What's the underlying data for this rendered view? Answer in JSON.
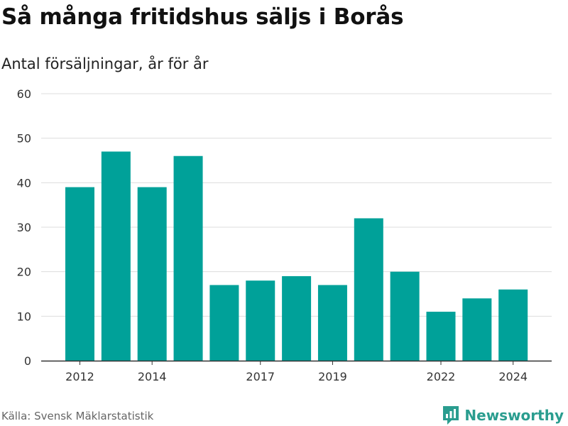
{
  "title": "Så många fritidshus säljs i Borås",
  "subtitle": "Antal försäljningar, år för år",
  "source": "Källa: Svensk Mäklarstatistik",
  "brand": "Newsworthy",
  "colors": {
    "bar": "#00a199",
    "grid": "#dddddd",
    "axis": "#333333",
    "brand": "#2a9d8f"
  },
  "chart_data": {
    "type": "bar",
    "categories": [
      "2012",
      "2013",
      "2014",
      "2015",
      "2016",
      "2017",
      "2018",
      "2019",
      "2020",
      "2021",
      "2022",
      "2023",
      "2024"
    ],
    "values": [
      39,
      47,
      39,
      46,
      17,
      18,
      19,
      17,
      32,
      20,
      11,
      14,
      16
    ],
    "xtick_labels": [
      "2012",
      "2014",
      "2017",
      "2019",
      "2022",
      "2024"
    ],
    "yticks": [
      0,
      10,
      20,
      30,
      40,
      50,
      60
    ],
    "ylim": [
      0,
      60
    ],
    "grid": true,
    "legend": "none"
  }
}
